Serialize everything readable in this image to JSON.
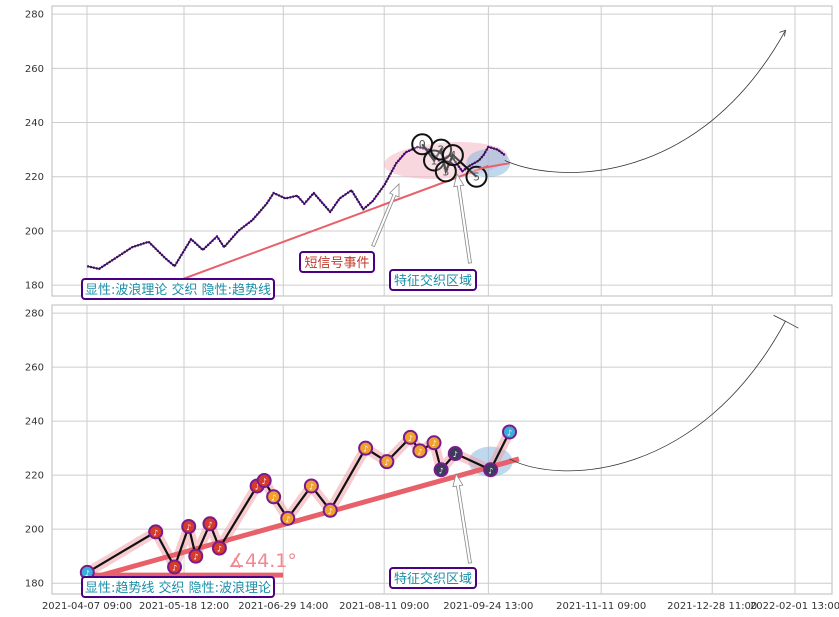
{
  "chart_data": [
    {
      "type": "line",
      "title": "",
      "xlabel": "",
      "ylabel": "",
      "ylim": [
        176,
        283
      ],
      "y_ticks": [
        "180",
        "200",
        "220",
        "240",
        "260",
        "280"
      ],
      "grid": true,
      "series": [
        {
          "values": [
            [
              "2021-04-07",
              187
            ],
            [
              "2021-04-12",
              186
            ],
            [
              "2021-04-19",
              190
            ],
            [
              "2021-04-26",
              194
            ],
            [
              "2021-05-03",
              196
            ],
            [
              "2021-05-10",
              190
            ],
            [
              "2021-05-14",
              187
            ],
            [
              "2021-05-21",
              197
            ],
            [
              "2021-05-26",
              193
            ],
            [
              "2021-06-01",
              198
            ],
            [
              "2021-06-04",
              194
            ],
            [
              "2021-06-10",
              200
            ],
            [
              "2021-06-16",
              204
            ],
            [
              "2021-06-22",
              210
            ],
            [
              "2021-06-25",
              214
            ],
            [
              "2021-06-30",
              212
            ],
            [
              "2021-07-05",
              213
            ],
            [
              "2021-07-08",
              210
            ],
            [
              "2021-07-12",
              214
            ],
            [
              "2021-07-19",
              207
            ],
            [
              "2021-07-23",
              212
            ],
            [
              "2021-07-28",
              215
            ],
            [
              "2021-08-02",
              208
            ],
            [
              "2021-08-06",
              211
            ],
            [
              "2021-08-11",
              217
            ],
            [
              "2021-08-16",
              225
            ],
            [
              "2021-08-20",
              229
            ],
            [
              "2021-08-25",
              231
            ],
            [
              "2021-08-30",
              230
            ],
            [
              "2021-09-03",
              226
            ],
            [
              "2021-09-08",
              228
            ],
            [
              "2021-09-13",
              222
            ],
            [
              "2021-09-16",
              224
            ],
            [
              "2021-09-20",
              226
            ],
            [
              "2021-09-22",
              228
            ],
            [
              "2021-09-24",
              231
            ],
            [
              "2021-09-28",
              230
            ],
            [
              "2021-10-01",
              228
            ]
          ]
        }
      ],
      "wave_points": [
        {
          "label": "0",
          "x": "2021-08-27",
          "y": 232
        },
        {
          "label": "1",
          "x": "2021-09-01",
          "y": 226
        },
        {
          "label": "2",
          "x": "2021-09-04",
          "y": 230
        },
        {
          "label": "3",
          "x": "2021-09-06",
          "y": 222
        },
        {
          "label": "4",
          "x": "2021-09-09",
          "y": 228
        },
        {
          "label": "5",
          "x": "2021-09-19",
          "y": 220
        }
      ],
      "annotations": [
        {
          "text": "显性:波浪理论 交织 隐性:趋势线",
          "color": "#1a8fa8",
          "border": "#4b0082"
        },
        {
          "text": "短信号事件",
          "color": "#c0392b",
          "border": "#4b0082"
        },
        {
          "text": "特征交织区域",
          "color": "#1a8fa8",
          "border": "#4b0082"
        }
      ]
    },
    {
      "type": "line",
      "title": "",
      "xlabel": "",
      "ylabel": "",
      "ylim": [
        176,
        283
      ],
      "y_ticks": [
        "180",
        "200",
        "220",
        "240",
        "260",
        "280"
      ],
      "x_ticks": [
        "2021-04-07 09:00",
        "2021-05-18 12:00",
        "2021-06-29 14:00",
        "2021-08-11 09:00",
        "2021-09-24 13:00",
        "2021-11-11 09:00",
        "2021-12-28 11:00",
        "2022-02-01 13:00"
      ],
      "grid": true,
      "series": [
        {
          "values": [
            [
              "2021-04-07",
              184
            ],
            [
              "2021-05-06",
              199
            ],
            [
              "2021-05-14",
              186
            ],
            [
              "2021-05-20",
              201
            ],
            [
              "2021-05-23",
              190
            ],
            [
              "2021-05-29",
              202
            ],
            [
              "2021-06-02",
              193
            ],
            [
              "2021-06-18",
              216
            ],
            [
              "2021-06-21",
              218
            ],
            [
              "2021-06-25",
              212
            ],
            [
              "2021-07-01",
              204
            ],
            [
              "2021-07-11",
              216
            ],
            [
              "2021-07-19",
              207
            ],
            [
              "2021-08-03",
              230
            ],
            [
              "2021-08-12",
              225
            ],
            [
              "2021-08-22",
              234
            ],
            [
              "2021-08-26",
              229
            ],
            [
              "2021-09-01",
              232
            ],
            [
              "2021-09-04",
              222
            ],
            [
              "2021-09-10",
              228
            ],
            [
              "2021-09-25",
              222
            ],
            [
              "2021-10-03",
              236
            ]
          ]
        }
      ],
      "angle_label": "∡44.1°",
      "annotations": [
        {
          "text": "显性:趋势线 交织 隐性:波浪理论",
          "color": "#1a8fa8",
          "border": "#4b0082"
        },
        {
          "text": "特征交织区域",
          "color": "#1a8fa8",
          "border": "#4b0082"
        }
      ]
    }
  ],
  "colors": {
    "price_line": "#4b0082",
    "trend_line": "#e8606a",
    "highlight_pink": "#f4b6c2",
    "highlight_blue": "#8ab8de",
    "grid": "#cccccc",
    "box_border": "#4b0082",
    "teal_text": "#1a8fa8",
    "red_text": "#c0392b"
  },
  "icons": {
    "marker_glyph": "♪"
  }
}
